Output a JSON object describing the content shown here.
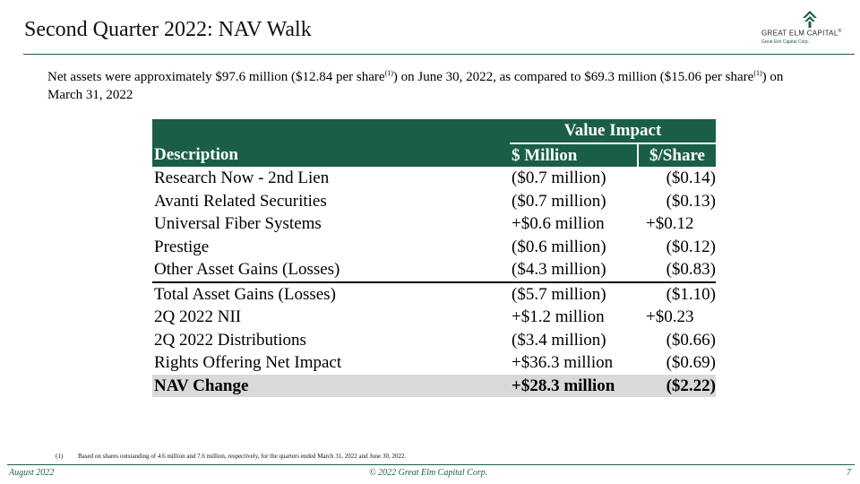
{
  "header": {
    "title": "Second Quarter 2022: NAV Walk",
    "logo_name": "GREAT ELM CAPITAL",
    "logo_reg": "®",
    "logo_tagline": "Great Elm Capital Corp."
  },
  "intro": {
    "part1": "Net assets were approximately $97.6 million ($12.84 per share",
    "sup1": "(1)",
    "part2": ") on June 30, 2022, as compared to $69.3 million ($15.06 per share",
    "sup2": "(1)",
    "part3": ") on March 31, 2022"
  },
  "table": {
    "group_header": "Value Impact",
    "col_description": "Description",
    "col_million": "$ Million",
    "col_share": "$/Share",
    "rows": [
      {
        "desc": "Research Now - 2nd Lien",
        "million": "($0.7 million)",
        "share": "($0.14)"
      },
      {
        "desc": "Avanti Related Securities",
        "million": "($0.7 million)",
        "share": "($0.13)"
      },
      {
        "desc": "Universal Fiber Systems",
        "million": "+$0.6 million",
        "share": "+$0.12"
      },
      {
        "desc": "Prestige",
        "million": "($0.6 million)",
        "share": "($0.12)"
      },
      {
        "desc": "Other Asset Gains (Losses)",
        "million": "($4.3 million)",
        "share": "($0.83)"
      },
      {
        "desc": "Total Asset Gains (Losses)",
        "million": "($5.7 million)",
        "share": "($1.10)"
      },
      {
        "desc": "2Q 2022 NII",
        "million": "+$1.2 million",
        "share": "+$0.23"
      },
      {
        "desc": "2Q 2022 Distributions",
        "million": "($3.4 million)",
        "share": "($0.66)"
      },
      {
        "desc": "Rights Offering Net Impact",
        "million": "+$36.3 million",
        "share": "($0.69)"
      }
    ],
    "total": {
      "desc": "NAV Change",
      "million": "+$28.3 million",
      "share": "($2.22)"
    }
  },
  "footnote": {
    "marker": "(1)",
    "text": "Based on shares outstanding of 4.6 million and 7.6 million, respectively, for the quarters ended March 31, 2022 and June 30, 2022."
  },
  "footer": {
    "date": "August 2022",
    "copyright": "© 2022 Great Elm Capital Corp.",
    "page": "7"
  },
  "colors": {
    "brand_green": "#1b5e48",
    "total_row_bg": "#d9d9d9"
  }
}
